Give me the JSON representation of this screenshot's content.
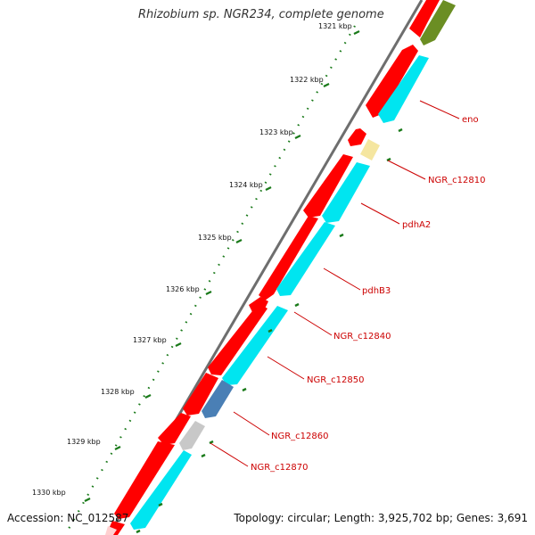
{
  "title": "Rhizobium sp. NGR234, complete genome",
  "footer": {
    "accession": "Accession: NC_012587",
    "topology": "Topology: circular; Length: 3,925,702 bp; Genes: 3,691"
  },
  "ticks": [
    {
      "label": "1321 kbp"
    },
    {
      "label": "1322 kbp"
    },
    {
      "label": "1323 kbp"
    },
    {
      "label": "1324 kbp"
    },
    {
      "label": "1325 kbp"
    },
    {
      "label": "1326 kbp"
    },
    {
      "label": "1327 kbp"
    },
    {
      "label": "1328 kbp"
    },
    {
      "label": "1329 kbp"
    },
    {
      "label": "1330 kbp"
    }
  ],
  "gene_labels": [
    "eno",
    "NGR_c12810",
    "pdhA2",
    "pdhB3",
    "NGR_c12840",
    "NGR_c12850",
    "NGR_c12860",
    "NGR_c12870"
  ],
  "colors": {
    "cds": "#ff0000",
    "cds_dark": "#c00000",
    "cyan": "#00e5f0",
    "olive": "#6b8e23",
    "pale_yellow": "#f5e6a0",
    "steel_blue": "#4a7fb5",
    "gray": "#c8c8c8",
    "backbone": "#6e6e6e",
    "tick": "#1a7a1a",
    "label": "#cc0000"
  }
}
